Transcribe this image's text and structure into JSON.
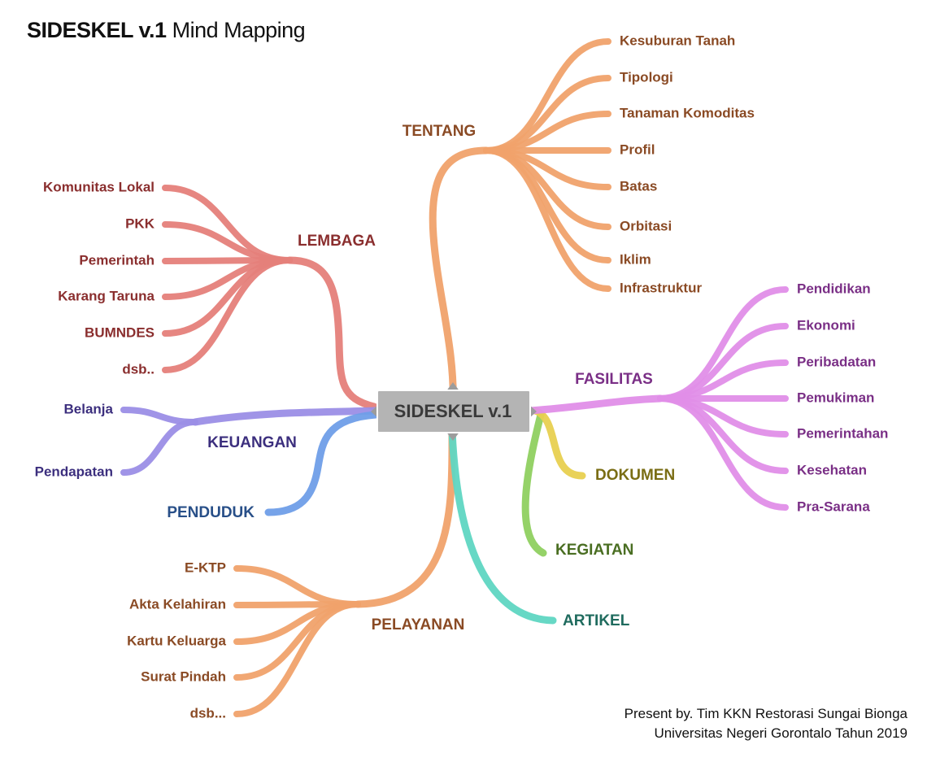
{
  "title": {
    "bold": "SIDESKEL v.1",
    "rest": "Mind Mapping"
  },
  "center": {
    "label": "SIDESKEL v.1"
  },
  "branches": [
    {
      "key": "tentang",
      "label": "TENTANG",
      "color": "#f0a26c",
      "text_color": "#8a4a24",
      "children": [
        "Kesuburan Tanah",
        "Tipologi",
        "Tanaman Komoditas",
        "Profil",
        "Batas",
        "Orbitasi",
        "Iklim",
        "Infrastruktur"
      ]
    },
    {
      "key": "lembaga",
      "label": "LEMBAGA",
      "color": "#e57f7a",
      "text_color": "#8a2e2e",
      "children": [
        "Komunitas Lokal",
        "PKK",
        "Pemerintah",
        "Karang Taruna",
        "BUMNDES",
        "dsb.."
      ]
    },
    {
      "key": "keuangan",
      "label": "KEUANGAN",
      "color": "#9b8ee6",
      "text_color": "#3c2f7e",
      "children": [
        "Belanja",
        "Pendapatan"
      ]
    },
    {
      "key": "penduduk",
      "label": "PENDUDUK",
      "color": "#6f9ee8",
      "text_color": "#284f88",
      "children": []
    },
    {
      "key": "pelayanan",
      "label": "PELAYANAN",
      "color": "#f0a26c",
      "text_color": "#8a4a24",
      "children": [
        "E-KTP",
        "Akta Kelahiran",
        "Kartu Keluarga",
        "Surat Pindah",
        "dsb..."
      ]
    },
    {
      "key": "artikel",
      "label": "ARTIKEL",
      "color": "#5fd6c2",
      "text_color": "#1f6b5e",
      "children": []
    },
    {
      "key": "kegiatan",
      "label": "KEGIATAN",
      "color": "#8fd060",
      "text_color": "#4a6e22",
      "children": []
    },
    {
      "key": "dokumen",
      "label": "DOKUMEN",
      "color": "#e8d050",
      "text_color": "#7a6d14",
      "children": []
    },
    {
      "key": "fasilitas",
      "label": "FASILITAS",
      "color": "#e08ee8",
      "text_color": "#7a2f86",
      "children": [
        "Pendidikan",
        "Ekonomi",
        "Peribadatan",
        "Pemukiman",
        "Pemerintahan",
        "Kesehatan",
        "Pra-Sarana"
      ]
    }
  ],
  "credit": {
    "line1": "Present by. Tim KKN Restorasi Sungai Bionga",
    "line2": "Universitas Negeri Gorontalo Tahun 2019"
  }
}
